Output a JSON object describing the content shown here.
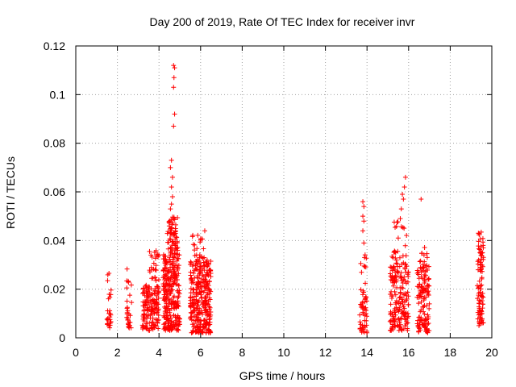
{
  "chart_data": {
    "type": "scatter",
    "title": "Day 200 of 2019, Rate Of TEC Index for receiver invr",
    "xlabel": "GPS time / hours",
    "ylabel": "ROTI / TECUs",
    "xlim": [
      0,
      20
    ],
    "ylim": [
      0,
      0.12
    ],
    "x_ticks": [
      0,
      2,
      4,
      6,
      8,
      10,
      12,
      14,
      16,
      18,
      20
    ],
    "x_tick_labels": [
      "0",
      "2",
      "4",
      "6",
      "8",
      "10",
      "12",
      "14",
      "16",
      "18",
      "20"
    ],
    "y_ticks": [
      0,
      0.02,
      0.04,
      0.06,
      0.08,
      0.1,
      0.12
    ],
    "y_tick_labels": [
      "0",
      "0.02",
      "0.04",
      "0.06",
      "0.08",
      "0.1",
      "0.12"
    ],
    "grid": true,
    "marker": "+",
    "series_color": "#ff0000",
    "clusters": [
      {
        "x_range": [
          1.5,
          1.7
        ],
        "y_range": [
          0.004,
          0.012
        ],
        "count": 20
      },
      {
        "x_range": [
          1.5,
          1.7
        ],
        "y_range": [
          0.012,
          0.03
        ],
        "count": 8
      },
      {
        "x_range": [
          2.45,
          2.7
        ],
        "y_range": [
          0.004,
          0.016
        ],
        "count": 22
      },
      {
        "x_range": [
          2.45,
          2.7
        ],
        "y_range": [
          0.016,
          0.03
        ],
        "count": 8
      },
      {
        "x_range": [
          3.2,
          4.0
        ],
        "y_range": [
          0.003,
          0.022
        ],
        "count": 150
      },
      {
        "x_range": [
          3.5,
          4.0
        ],
        "y_range": [
          0.02,
          0.036
        ],
        "count": 25
      },
      {
        "x_range": [
          4.2,
          5.0
        ],
        "y_range": [
          0.003,
          0.035
        ],
        "count": 280
      },
      {
        "x_range": [
          4.4,
          4.9
        ],
        "y_range": [
          0.035,
          0.05
        ],
        "count": 60
      },
      {
        "x_range": [
          5.5,
          6.5
        ],
        "y_range": [
          0.002,
          0.032
        ],
        "count": 300
      },
      {
        "x_range": [
          5.6,
          6.2
        ],
        "y_range": [
          0.032,
          0.043
        ],
        "count": 20
      },
      {
        "x_range": [
          13.65,
          14.0
        ],
        "y_range": [
          0.002,
          0.018
        ],
        "count": 45
      },
      {
        "x_range": [
          13.7,
          14.0
        ],
        "y_range": [
          0.018,
          0.035
        ],
        "count": 12
      },
      {
        "x_range": [
          15.1,
          16.0
        ],
        "y_range": [
          0.003,
          0.03
        ],
        "count": 170
      },
      {
        "x_range": [
          15.2,
          15.9
        ],
        "y_range": [
          0.03,
          0.05
        ],
        "count": 30
      },
      {
        "x_range": [
          16.4,
          17.0
        ],
        "y_range": [
          0.002,
          0.03
        ],
        "count": 130
      },
      {
        "x_range": [
          16.5,
          16.9
        ],
        "y_range": [
          0.03,
          0.041
        ],
        "count": 10
      },
      {
        "x_range": [
          19.3,
          19.6
        ],
        "y_range": [
          0.005,
          0.032
        ],
        "count": 70
      },
      {
        "x_range": [
          19.35,
          19.6
        ],
        "y_range": [
          0.032,
          0.045
        ],
        "count": 25
      }
    ],
    "outlier_points": [
      {
        "x": 4.7,
        "y": 0.112
      },
      {
        "x": 4.75,
        "y": 0.111
      },
      {
        "x": 4.72,
        "y": 0.107
      },
      {
        "x": 4.7,
        "y": 0.103
      },
      {
        "x": 4.75,
        "y": 0.092
      },
      {
        "x": 4.7,
        "y": 0.087
      },
      {
        "x": 4.6,
        "y": 0.073
      },
      {
        "x": 4.55,
        "y": 0.07
      },
      {
        "x": 4.65,
        "y": 0.066
      },
      {
        "x": 4.6,
        "y": 0.062
      },
      {
        "x": 4.65,
        "y": 0.058
      },
      {
        "x": 4.6,
        "y": 0.055
      },
      {
        "x": 4.55,
        "y": 0.053
      },
      {
        "x": 6.2,
        "y": 0.044
      },
      {
        "x": 13.8,
        "y": 0.056
      },
      {
        "x": 13.85,
        "y": 0.054
      },
      {
        "x": 13.8,
        "y": 0.05
      },
      {
        "x": 13.85,
        "y": 0.048
      },
      {
        "x": 13.8,
        "y": 0.044
      },
      {
        "x": 13.85,
        "y": 0.039
      },
      {
        "x": 15.85,
        "y": 0.066
      },
      {
        "x": 15.8,
        "y": 0.062
      },
      {
        "x": 15.7,
        "y": 0.059
      },
      {
        "x": 15.75,
        "y": 0.057
      },
      {
        "x": 15.65,
        "y": 0.053
      },
      {
        "x": 15.6,
        "y": 0.049
      },
      {
        "x": 16.6,
        "y": 0.057
      }
    ]
  }
}
